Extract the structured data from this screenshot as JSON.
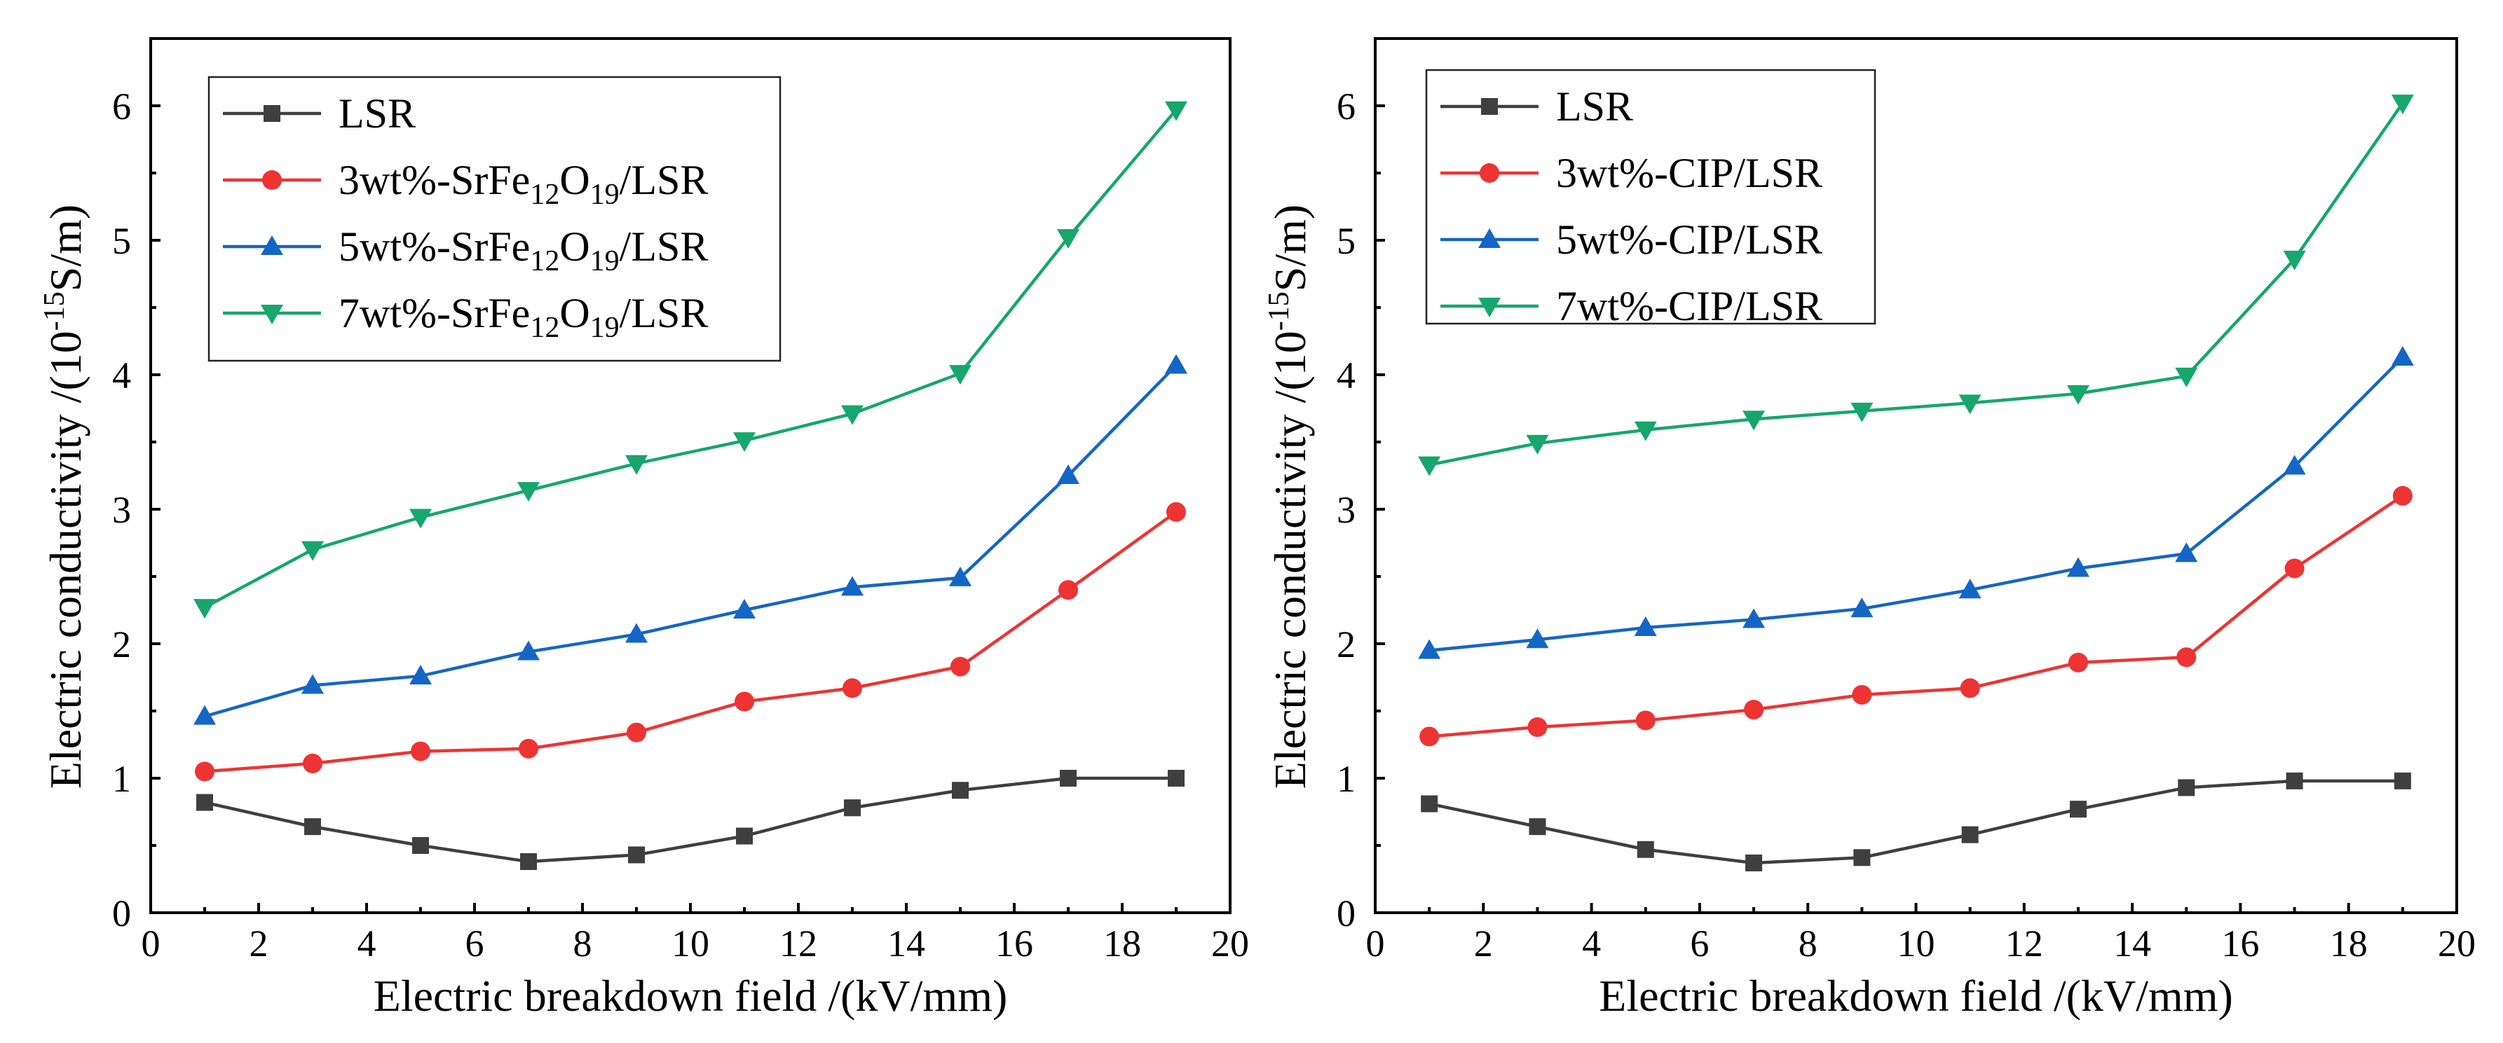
{
  "chart_data": [
    {
      "type": "line",
      "xlabel": "Electric breakdown field /(kV/mm)",
      "ylabel": "Electric conductivity /(10",
      "ylabel_sup": "-15",
      "ylabel_end": "S/m)",
      "xlim": [
        0,
        20
      ],
      "ylim": [
        0,
        6.5
      ],
      "xticks": [
        "0",
        "2",
        "4",
        "6",
        "8",
        "10",
        "12",
        "14",
        "16",
        "18",
        "20"
      ],
      "yticks": [
        "0",
        "1",
        "2",
        "3",
        "4",
        "5",
        "6"
      ],
      "legend_position": "top-left",
      "x": [
        1,
        3,
        5,
        7,
        9,
        11,
        13,
        15,
        17,
        19
      ],
      "series": [
        {
          "name": "LSR",
          "label": [
            {
              "t": "LSR",
              "s": ""
            }
          ],
          "color": "#3f3f3f",
          "marker": "square",
          "values": [
            0.82,
            0.64,
            0.5,
            0.38,
            0.43,
            0.57,
            0.78,
            0.91,
            1.0,
            1.0
          ]
        },
        {
          "name": "3wt%-SrFe12O19/LSR",
          "label": [
            {
              "t": "3wt%-SrFe",
              "s": ""
            },
            {
              "t": "12",
              "s": "sub"
            },
            {
              "t": "O",
              "s": ""
            },
            {
              "t": "19",
              "s": "sub"
            },
            {
              "t": "/LSR",
              "s": ""
            }
          ],
          "color": "#ee3333",
          "marker": "circle",
          "values": [
            1.05,
            1.11,
            1.2,
            1.22,
            1.34,
            1.57,
            1.67,
            1.83,
            2.4,
            2.98
          ]
        },
        {
          "name": "5wt%-SrFe12O19/LSR",
          "label": [
            {
              "t": "5wt%-SrFe",
              "s": ""
            },
            {
              "t": "12",
              "s": "sub"
            },
            {
              "t": "O",
              "s": ""
            },
            {
              "t": "19",
              "s": "sub"
            },
            {
              "t": "/LSR",
              "s": ""
            }
          ],
          "color": "#1466c6",
          "marker": "triangle-up",
          "values": [
            1.46,
            1.69,
            1.76,
            1.94,
            2.07,
            2.25,
            2.42,
            2.49,
            3.25,
            4.07
          ]
        },
        {
          "name": "7wt%-SrFe12O19/LSR",
          "label": [
            {
              "t": "7wt%-SrFe",
              "s": ""
            },
            {
              "t": "12",
              "s": "sub"
            },
            {
              "t": "O",
              "s": ""
            },
            {
              "t": "19",
              "s": "sub"
            },
            {
              "t": "/LSR",
              "s": ""
            }
          ],
          "color": "#16a66e",
          "marker": "triangle-down",
          "values": [
            2.27,
            2.7,
            2.94,
            3.14,
            3.34,
            3.51,
            3.71,
            4.01,
            5.02,
            5.97
          ]
        }
      ]
    },
    {
      "type": "line",
      "xlabel": "Electric breakdown field /(kV/mm)",
      "ylabel": "Electric conductivity /(10",
      "ylabel_sup": "-15",
      "ylabel_end": "S/m)",
      "xlim": [
        0,
        20
      ],
      "ylim": [
        0,
        6.5
      ],
      "xticks": [
        "0",
        "2",
        "4",
        "6",
        "8",
        "10",
        "12",
        "14",
        "16",
        "18",
        "20"
      ],
      "yticks": [
        "0",
        "1",
        "2",
        "3",
        "4",
        "5",
        "6"
      ],
      "legend_position": "top-left",
      "x": [
        1,
        3,
        5,
        7,
        9,
        11,
        13,
        15,
        17,
        19
      ],
      "series": [
        {
          "name": "LSR",
          "label": [
            {
              "t": "LSR",
              "s": ""
            }
          ],
          "color": "#3f3f3f",
          "marker": "square",
          "values": [
            0.81,
            0.64,
            0.47,
            0.37,
            0.41,
            0.58,
            0.77,
            0.93,
            0.98,
            0.98
          ]
        },
        {
          "name": "3wt%-CIP/LSR",
          "label": [
            {
              "t": "3wt%-CIP/LSR",
              "s": ""
            }
          ],
          "color": "#ee3333",
          "marker": "circle",
          "values": [
            1.31,
            1.38,
            1.43,
            1.51,
            1.62,
            1.67,
            1.86,
            1.9,
            2.56,
            3.1
          ]
        },
        {
          "name": "5wt%-CIP/LSR",
          "label": [
            {
              "t": "5wt%-CIP/LSR",
              "s": ""
            }
          ],
          "color": "#1466c6",
          "marker": "triangle-up",
          "values": [
            1.95,
            2.03,
            2.12,
            2.18,
            2.26,
            2.4,
            2.56,
            2.67,
            3.32,
            4.13
          ]
        },
        {
          "name": "7wt%-CIP/LSR",
          "label": [
            {
              "t": "7wt%-CIP/LSR",
              "s": ""
            }
          ],
          "color": "#16a66e",
          "marker": "triangle-down",
          "values": [
            3.33,
            3.49,
            3.59,
            3.67,
            3.73,
            3.79,
            3.86,
            3.99,
            4.86,
            6.02
          ]
        }
      ]
    }
  ]
}
